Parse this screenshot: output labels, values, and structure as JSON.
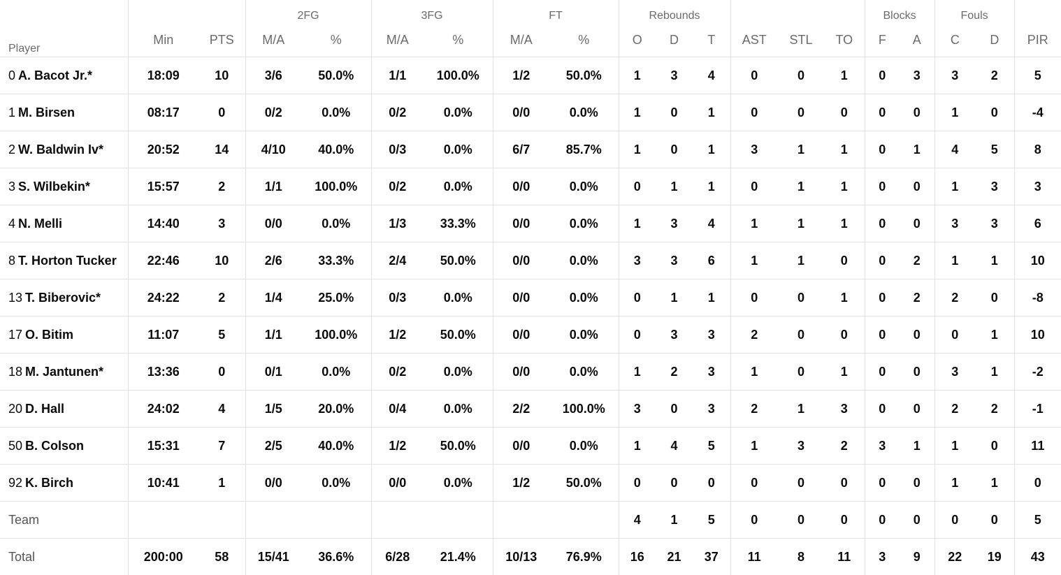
{
  "groups": {
    "two_fg": "2FG",
    "three_fg": "3FG",
    "ft": "FT",
    "rebounds": "Rebounds",
    "blocks": "Blocks",
    "fouls": "Fouls"
  },
  "headers": {
    "player": "Player",
    "min": "Min",
    "pts": "PTS",
    "two_ma": "M/A",
    "two_pct": "%",
    "three_ma": "M/A",
    "three_pct": "%",
    "ft_ma": "M/A",
    "ft_pct": "%",
    "reb_o": "O",
    "reb_d": "D",
    "reb_t": "T",
    "ast": "AST",
    "stl": "STL",
    "to": "TO",
    "blk_f": "F",
    "blk_a": "A",
    "foul_c": "C",
    "foul_d": "D",
    "pir": "PIR"
  },
  "players": [
    {
      "num": "0",
      "name": "A. Bacot Jr.*",
      "min": "18:09",
      "pts": "10",
      "two_ma": "3/6",
      "two_pct": "50.0%",
      "three_ma": "1/1",
      "three_pct": "100.0%",
      "ft_ma": "1/2",
      "ft_pct": "50.0%",
      "reb_o": "1",
      "reb_d": "3",
      "reb_t": "4",
      "ast": "0",
      "stl": "0",
      "to": "1",
      "blk_f": "0",
      "blk_a": "3",
      "foul_c": "3",
      "foul_d": "2",
      "pir": "5"
    },
    {
      "num": "1",
      "name": "M. Birsen",
      "min": "08:17",
      "pts": "0",
      "two_ma": "0/2",
      "two_pct": "0.0%",
      "three_ma": "0/2",
      "three_pct": "0.0%",
      "ft_ma": "0/0",
      "ft_pct": "0.0%",
      "reb_o": "1",
      "reb_d": "0",
      "reb_t": "1",
      "ast": "0",
      "stl": "0",
      "to": "0",
      "blk_f": "0",
      "blk_a": "0",
      "foul_c": "1",
      "foul_d": "0",
      "pir": "-4"
    },
    {
      "num": "2",
      "name": "W. Baldwin Iv*",
      "min": "20:52",
      "pts": "14",
      "two_ma": "4/10",
      "two_pct": "40.0%",
      "three_ma": "0/3",
      "three_pct": "0.0%",
      "ft_ma": "6/7",
      "ft_pct": "85.7%",
      "reb_o": "1",
      "reb_d": "0",
      "reb_t": "1",
      "ast": "3",
      "stl": "1",
      "to": "1",
      "blk_f": "0",
      "blk_a": "1",
      "foul_c": "4",
      "foul_d": "5",
      "pir": "8"
    },
    {
      "num": "3",
      "name": "S. Wilbekin*",
      "min": "15:57",
      "pts": "2",
      "two_ma": "1/1",
      "two_pct": "100.0%",
      "three_ma": "0/2",
      "three_pct": "0.0%",
      "ft_ma": "0/0",
      "ft_pct": "0.0%",
      "reb_o": "0",
      "reb_d": "1",
      "reb_t": "1",
      "ast": "0",
      "stl": "1",
      "to": "1",
      "blk_f": "0",
      "blk_a": "0",
      "foul_c": "1",
      "foul_d": "3",
      "pir": "3"
    },
    {
      "num": "4",
      "name": "N. Melli",
      "min": "14:40",
      "pts": "3",
      "two_ma": "0/0",
      "two_pct": "0.0%",
      "three_ma": "1/3",
      "three_pct": "33.3%",
      "ft_ma": "0/0",
      "ft_pct": "0.0%",
      "reb_o": "1",
      "reb_d": "3",
      "reb_t": "4",
      "ast": "1",
      "stl": "1",
      "to": "1",
      "blk_f": "0",
      "blk_a": "0",
      "foul_c": "3",
      "foul_d": "3",
      "pir": "6"
    },
    {
      "num": "8",
      "name": "T. Horton Tucker",
      "min": "22:46",
      "pts": "10",
      "two_ma": "2/6",
      "two_pct": "33.3%",
      "three_ma": "2/4",
      "three_pct": "50.0%",
      "ft_ma": "0/0",
      "ft_pct": "0.0%",
      "reb_o": "3",
      "reb_d": "3",
      "reb_t": "6",
      "ast": "1",
      "stl": "1",
      "to": "0",
      "blk_f": "0",
      "blk_a": "2",
      "foul_c": "1",
      "foul_d": "1",
      "pir": "10"
    },
    {
      "num": "13",
      "name": "T. Biberovic*",
      "min": "24:22",
      "pts": "2",
      "two_ma": "1/4",
      "two_pct": "25.0%",
      "three_ma": "0/3",
      "three_pct": "0.0%",
      "ft_ma": "0/0",
      "ft_pct": "0.0%",
      "reb_o": "0",
      "reb_d": "1",
      "reb_t": "1",
      "ast": "0",
      "stl": "0",
      "to": "1",
      "blk_f": "0",
      "blk_a": "2",
      "foul_c": "2",
      "foul_d": "0",
      "pir": "-8"
    },
    {
      "num": "17",
      "name": "O. Bitim",
      "min": "11:07",
      "pts": "5",
      "two_ma": "1/1",
      "two_pct": "100.0%",
      "three_ma": "1/2",
      "three_pct": "50.0%",
      "ft_ma": "0/0",
      "ft_pct": "0.0%",
      "reb_o": "0",
      "reb_d": "3",
      "reb_t": "3",
      "ast": "2",
      "stl": "0",
      "to": "0",
      "blk_f": "0",
      "blk_a": "0",
      "foul_c": "0",
      "foul_d": "1",
      "pir": "10"
    },
    {
      "num": "18",
      "name": "M. Jantunen*",
      "min": "13:36",
      "pts": "0",
      "two_ma": "0/1",
      "two_pct": "0.0%",
      "three_ma": "0/2",
      "three_pct": "0.0%",
      "ft_ma": "0/0",
      "ft_pct": "0.0%",
      "reb_o": "1",
      "reb_d": "2",
      "reb_t": "3",
      "ast": "1",
      "stl": "0",
      "to": "1",
      "blk_f": "0",
      "blk_a": "0",
      "foul_c": "3",
      "foul_d": "1",
      "pir": "-2"
    },
    {
      "num": "20",
      "name": "D. Hall",
      "min": "24:02",
      "pts": "4",
      "two_ma": "1/5",
      "two_pct": "20.0%",
      "three_ma": "0/4",
      "three_pct": "0.0%",
      "ft_ma": "2/2",
      "ft_pct": "100.0%",
      "reb_o": "3",
      "reb_d": "0",
      "reb_t": "3",
      "ast": "2",
      "stl": "1",
      "to": "3",
      "blk_f": "0",
      "blk_a": "0",
      "foul_c": "2",
      "foul_d": "2",
      "pir": "-1"
    },
    {
      "num": "50",
      "name": "B. Colson",
      "min": "15:31",
      "pts": "7",
      "two_ma": "2/5",
      "two_pct": "40.0%",
      "three_ma": "1/2",
      "three_pct": "50.0%",
      "ft_ma": "0/0",
      "ft_pct": "0.0%",
      "reb_o": "1",
      "reb_d": "4",
      "reb_t": "5",
      "ast": "1",
      "stl": "3",
      "to": "2",
      "blk_f": "3",
      "blk_a": "1",
      "foul_c": "1",
      "foul_d": "0",
      "pir": "11"
    },
    {
      "num": "92",
      "name": "K. Birch",
      "min": "10:41",
      "pts": "1",
      "two_ma": "0/0",
      "two_pct": "0.0%",
      "three_ma": "0/0",
      "three_pct": "0.0%",
      "ft_ma": "1/2",
      "ft_pct": "50.0%",
      "reb_o": "0",
      "reb_d": "0",
      "reb_t": "0",
      "ast": "0",
      "stl": "0",
      "to": "0",
      "blk_f": "0",
      "blk_a": "0",
      "foul_c": "1",
      "foul_d": "1",
      "pir": "0"
    }
  ],
  "team": {
    "label": "Team",
    "min": "",
    "pts": "",
    "two_ma": "",
    "two_pct": "",
    "three_ma": "",
    "three_pct": "",
    "ft_ma": "",
    "ft_pct": "",
    "reb_o": "4",
    "reb_d": "1",
    "reb_t": "5",
    "ast": "0",
    "stl": "0",
    "to": "0",
    "blk_f": "0",
    "blk_a": "0",
    "foul_c": "0",
    "foul_d": "0",
    "pir": "5"
  },
  "total": {
    "label": "Total",
    "min": "200:00",
    "pts": "58",
    "two_ma": "15/41",
    "two_pct": "36.6%",
    "three_ma": "6/28",
    "three_pct": "21.4%",
    "ft_ma": "10/13",
    "ft_pct": "76.9%",
    "reb_o": "16",
    "reb_d": "21",
    "reb_t": "37",
    "ast": "11",
    "stl": "8",
    "to": "11",
    "blk_f": "3",
    "blk_a": "9",
    "foul_c": "22",
    "foul_d": "19",
    "pir": "43"
  }
}
